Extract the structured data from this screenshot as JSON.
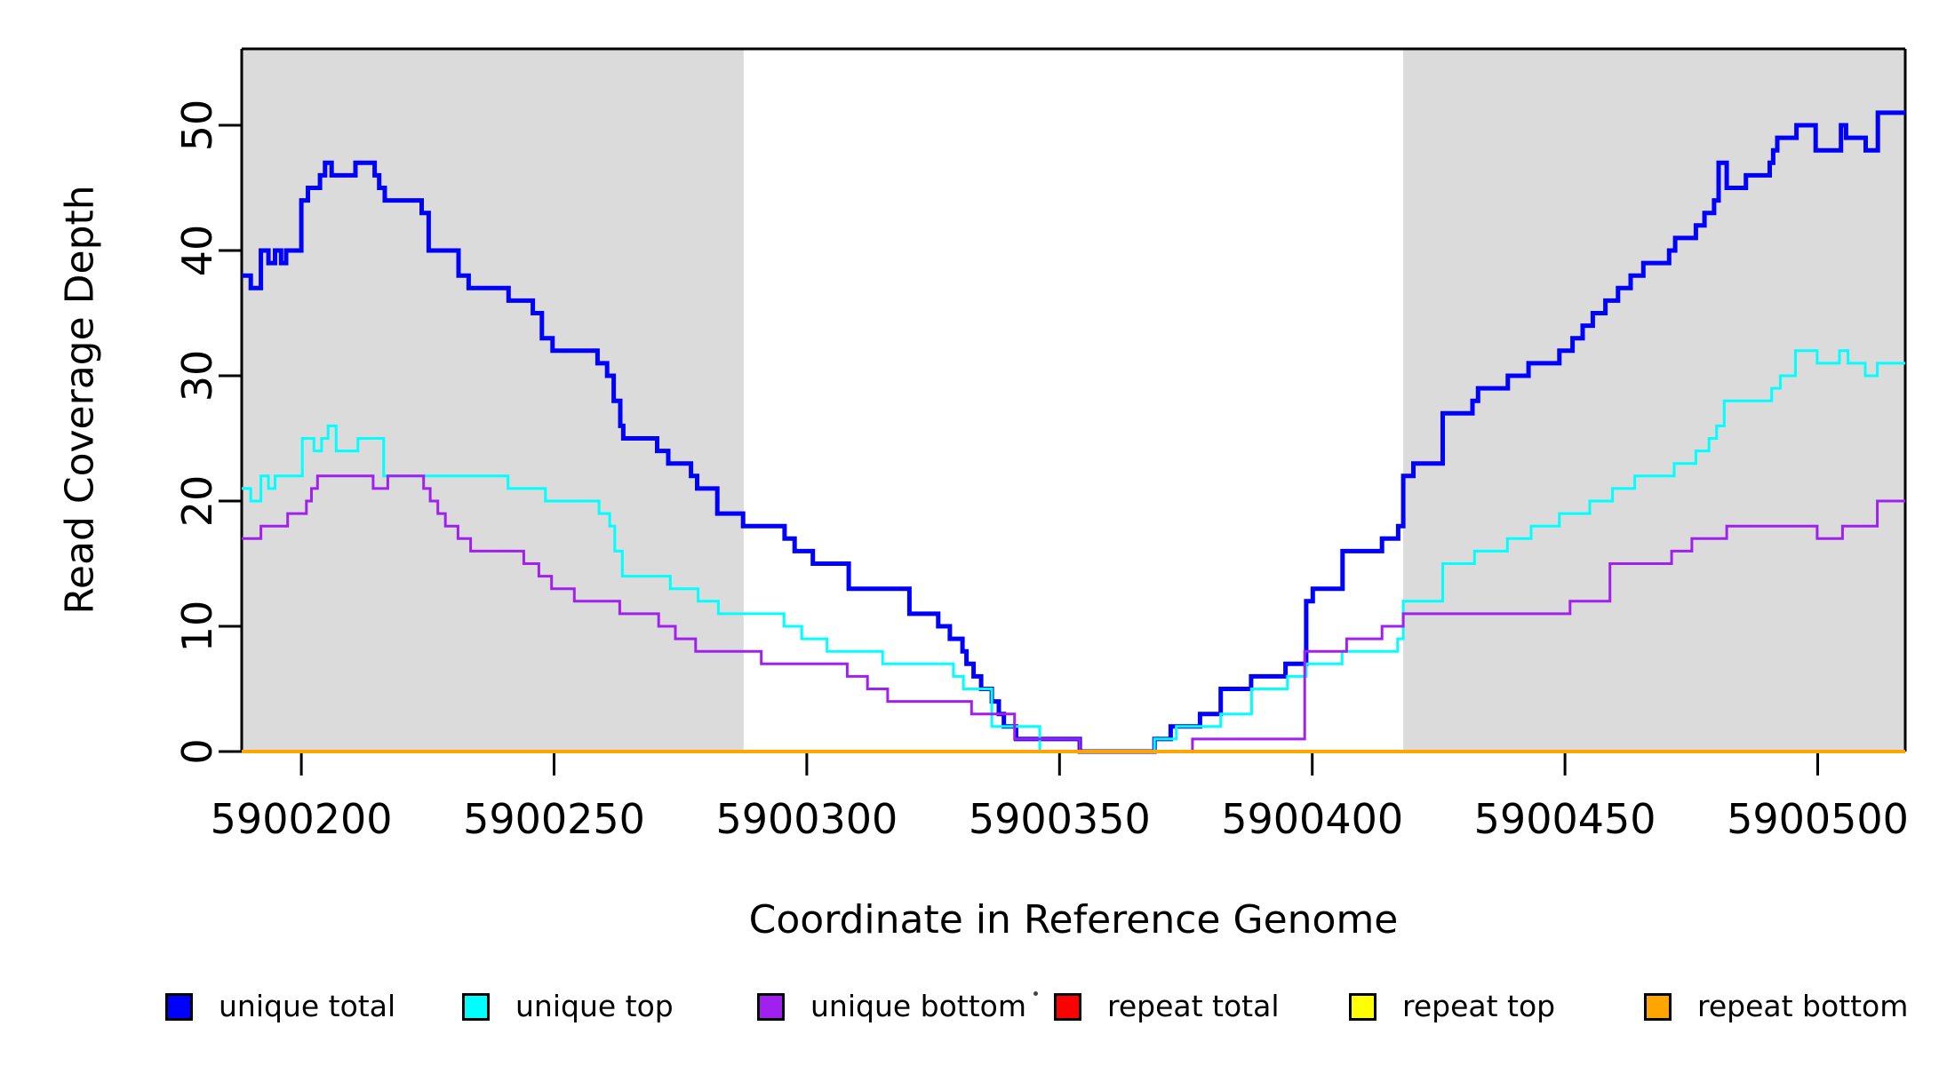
{
  "chart_data": {
    "type": "line",
    "subtype": "step-coverage-plot",
    "xlabel": "Coordinate in Reference Genome",
    "ylabel": "Read Coverage Depth",
    "xlim": [
      5900188.2,
      5900517.3
    ],
    "ylim": [
      0,
      56
    ],
    "x_ticks": [
      5900200,
      5900250,
      5900300,
      5900350,
      5900400,
      5900450,
      5900500
    ],
    "y_ticks": [
      0,
      10,
      20,
      30,
      40,
      50
    ],
    "grid": false,
    "legend_position": "bottom",
    "background_color": "#ffffff",
    "band_color": "#DBDBDB",
    "shaded_regions": [
      {
        "x0": 5900188.2,
        "x1": 5900287.5
      },
      {
        "x0": 5900418.0,
        "x1": 5900517.3
      }
    ],
    "series": [
      {
        "name": "unique total",
        "color": "#0000FF",
        "stroke_width": 5,
        "points": [
          [
            5900188.2,
            38
          ],
          [
            5900190,
            37
          ],
          [
            5900192,
            40
          ],
          [
            5900193.5,
            39
          ],
          [
            5900194.8,
            40
          ],
          [
            5900196,
            39
          ],
          [
            5900197,
            40
          ],
          [
            5900200,
            44
          ],
          [
            5900201.3,
            45
          ],
          [
            5900203.7,
            46
          ],
          [
            5900204.7,
            47
          ],
          [
            5900206,
            46
          ],
          [
            5900210.7,
            47
          ],
          [
            5900214.5,
            46
          ],
          [
            5900215.4,
            45
          ],
          [
            5900216.5,
            44
          ],
          [
            5900223.8,
            43
          ],
          [
            5900225.2,
            40
          ],
          [
            5900231.1,
            38
          ],
          [
            5900233.1,
            37
          ],
          [
            5900241,
            36
          ],
          [
            5900245.8,
            35
          ],
          [
            5900247.6,
            33
          ],
          [
            5900249.7,
            32
          ],
          [
            5900258.6,
            31
          ],
          [
            5900260.5,
            30
          ],
          [
            5900261.8,
            28
          ],
          [
            5900263.1,
            26
          ],
          [
            5900263.7,
            25
          ],
          [
            5900270.4,
            24
          ],
          [
            5900272.6,
            23
          ],
          [
            5900277.1,
            22
          ],
          [
            5900278.3,
            21
          ],
          [
            5900282.3,
            19
          ],
          [
            5900287.4,
            18
          ],
          [
            5900295.6,
            17
          ],
          [
            5900297.6,
            16
          ],
          [
            5900301.2,
            15
          ],
          [
            5900308.3,
            13
          ],
          [
            5900320.3,
            11
          ],
          [
            5900326,
            10
          ],
          [
            5900328.3,
            9
          ],
          [
            5900330.8,
            8
          ],
          [
            5900331.6,
            7
          ],
          [
            5900333,
            6
          ],
          [
            5900334.5,
            5
          ],
          [
            5900336.6,
            4
          ],
          [
            5900338,
            3
          ],
          [
            5900339,
            2
          ],
          [
            5900341.4,
            1
          ],
          [
            5900354,
            0
          ],
          [
            5900368.8,
            1
          ],
          [
            5900372,
            2
          ],
          [
            5900377.8,
            3
          ],
          [
            5900381.9,
            5
          ],
          [
            5900387.9,
            6
          ],
          [
            5900394.7,
            7
          ],
          [
            5900398.8,
            12
          ],
          [
            5900400.1,
            13
          ],
          [
            5900406,
            16
          ],
          [
            5900413.8,
            17
          ],
          [
            5900417,
            18
          ],
          [
            5900418,
            22
          ],
          [
            5900420,
            23
          ],
          [
            5900425.8,
            27
          ],
          [
            5900431.7,
            28
          ],
          [
            5900432.8,
            29
          ],
          [
            5900438.7,
            30
          ],
          [
            5900442.8,
            31
          ],
          [
            5900448.9,
            32
          ],
          [
            5900451.5,
            33
          ],
          [
            5900453.5,
            34
          ],
          [
            5900455.5,
            35
          ],
          [
            5900458,
            36
          ],
          [
            5900460.5,
            37
          ],
          [
            5900463,
            38
          ],
          [
            5900465.5,
            39
          ],
          [
            5900470.6,
            40
          ],
          [
            5900471.8,
            41
          ],
          [
            5900475.9,
            42
          ],
          [
            5900477.6,
            43
          ],
          [
            5900479.5,
            44
          ],
          [
            5900480.4,
            47
          ],
          [
            5900482,
            45
          ],
          [
            5900485.8,
            46
          ],
          [
            5900490.5,
            47
          ],
          [
            5900491.2,
            48
          ],
          [
            5900492,
            49
          ],
          [
            5900495.8,
            50
          ],
          [
            5900499.6,
            48
          ],
          [
            5900504.6,
            50
          ],
          [
            5900505.6,
            49
          ],
          [
            5900509.5,
            48
          ],
          [
            5900511.9,
            51
          ]
        ]
      },
      {
        "name": "unique top",
        "color": "#00FFFF",
        "stroke_width": 3,
        "points": [
          [
            5900188.2,
            21
          ],
          [
            5900190,
            20
          ],
          [
            5900192,
            22
          ],
          [
            5900193.5,
            21
          ],
          [
            5900194.8,
            22
          ],
          [
            5900200.2,
            25
          ],
          [
            5900202.5,
            24
          ],
          [
            5900204,
            25
          ],
          [
            5900205.3,
            26
          ],
          [
            5900206.9,
            24
          ],
          [
            5900211.2,
            25
          ],
          [
            5900216.3,
            22
          ],
          [
            5900240.9,
            21
          ],
          [
            5900248.3,
            20
          ],
          [
            5900258.9,
            19
          ],
          [
            5900261,
            18
          ],
          [
            5900262,
            16
          ],
          [
            5900263.5,
            14
          ],
          [
            5900273,
            13
          ],
          [
            5900278.5,
            12
          ],
          [
            5900282.5,
            11
          ],
          [
            5900295.5,
            10
          ],
          [
            5900299,
            9
          ],
          [
            5900304,
            8
          ],
          [
            5900315,
            7
          ],
          [
            5900329,
            6
          ],
          [
            5900331,
            5
          ],
          [
            5900336.6,
            2
          ],
          [
            5900346.1,
            0
          ],
          [
            5900368.8,
            1
          ],
          [
            5900373.1,
            2
          ],
          [
            5900381.9,
            3
          ],
          [
            5900388,
            5
          ],
          [
            5900395.1,
            6
          ],
          [
            5900398.8,
            7
          ],
          [
            5900405.9,
            8
          ],
          [
            5900416.9,
            9
          ],
          [
            5900418,
            12
          ],
          [
            5900425.8,
            15
          ],
          [
            5900432.1,
            16
          ],
          [
            5900438.6,
            17
          ],
          [
            5900443.3,
            18
          ],
          [
            5900448.9,
            19
          ],
          [
            5900454.9,
            20
          ],
          [
            5900459.4,
            21
          ],
          [
            5900463.8,
            22
          ],
          [
            5900471.6,
            23
          ],
          [
            5900475.9,
            24
          ],
          [
            5900478.5,
            25
          ],
          [
            5900480,
            26
          ],
          [
            5900481.5,
            28
          ],
          [
            5900490.9,
            29
          ],
          [
            5900492.6,
            30
          ],
          [
            5900495.6,
            32
          ],
          [
            5900499.9,
            31
          ],
          [
            5900504.3,
            32
          ],
          [
            5900506,
            31
          ],
          [
            5900509.4,
            30
          ],
          [
            5900511.8,
            31
          ]
        ]
      },
      {
        "name": "unique bottom",
        "color": "#A020F0",
        "stroke_width": 3,
        "points": [
          [
            5900188.2,
            17
          ],
          [
            5900192,
            18
          ],
          [
            5900197.3,
            19
          ],
          [
            5900201,
            20
          ],
          [
            5900202,
            21
          ],
          [
            5900203.2,
            22
          ],
          [
            5900214.2,
            21
          ],
          [
            5900217.1,
            22
          ],
          [
            5900224.2,
            21
          ],
          [
            5900225.5,
            20
          ],
          [
            5900227,
            19
          ],
          [
            5900228.5,
            18
          ],
          [
            5900231,
            17
          ],
          [
            5900233.5,
            16
          ],
          [
            5900244,
            15
          ],
          [
            5900247,
            14
          ],
          [
            5900249.5,
            13
          ],
          [
            5900254,
            12
          ],
          [
            5900263,
            11
          ],
          [
            5900270.7,
            10
          ],
          [
            5900274,
            9
          ],
          [
            5900278,
            8
          ],
          [
            5900291,
            7
          ],
          [
            5900308,
            6
          ],
          [
            5900312,
            5
          ],
          [
            5900316,
            4
          ],
          [
            5900332.6,
            3
          ],
          [
            5900341.1,
            1
          ],
          [
            5900354,
            0
          ],
          [
            5900376.3,
            1
          ],
          [
            5900398.5,
            8
          ],
          [
            5900406.8,
            9
          ],
          [
            5900413.8,
            10
          ],
          [
            5900418,
            11
          ],
          [
            5900451,
            12
          ],
          [
            5900458.9,
            15
          ],
          [
            5900471.1,
            16
          ],
          [
            5900475.1,
            17
          ],
          [
            5900482,
            18
          ],
          [
            5900499.9,
            17
          ],
          [
            5900504.9,
            18
          ],
          [
            5900511.8,
            20
          ]
        ]
      },
      {
        "name": "repeat total",
        "color": "#FF0000",
        "stroke_width": 3,
        "points": [
          [
            5900188.2,
            0
          ]
        ]
      },
      {
        "name": "repeat top",
        "color": "#FFFF00",
        "stroke_width": 3,
        "points": [
          [
            5900188.2,
            0
          ]
        ]
      },
      {
        "name": "repeat bottom",
        "color": "#FFA500",
        "stroke_width": 4,
        "points": [
          [
            5900188.2,
            0
          ]
        ]
      }
    ],
    "legend": [
      "unique total",
      "unique top",
      "unique bottom",
      "repeat total",
      "repeat top",
      "repeat bottom"
    ]
  },
  "layout_colors": {
    "axis": "#000000",
    "tick_label": "#000000"
  }
}
